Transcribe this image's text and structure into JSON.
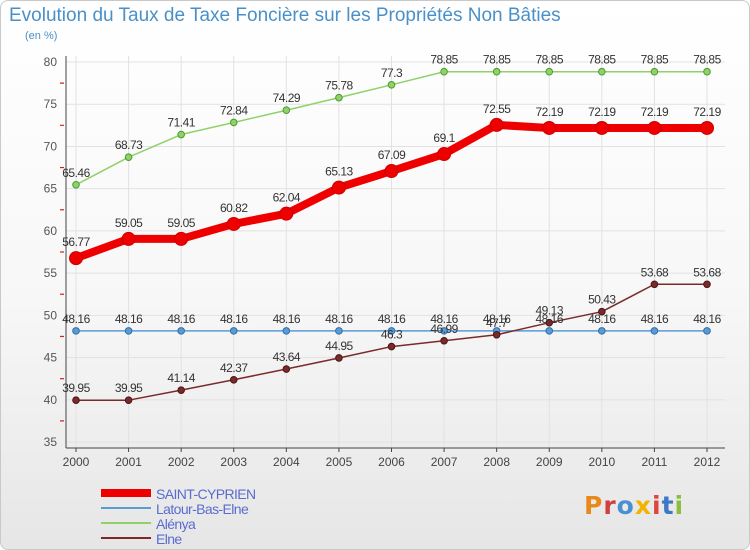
{
  "title": "Evolution du Taux de Taxe Foncière sur les Propriétés Non Bâties",
  "subtitle": "(en %)",
  "logo_text": "Proxiti",
  "chart_data": {
    "type": "line",
    "title": "Evolution du Taux de Taxe Foncière sur les Propriétés Non Bâties",
    "ylabel": "(en %)",
    "xlabel": "",
    "ylim": [
      35,
      80
    ],
    "yticks": [
      35,
      40,
      45,
      50,
      55,
      60,
      65,
      70,
      75,
      80
    ],
    "grid": true,
    "legend": "bottom-left",
    "x": [
      "2000",
      "2001",
      "2002",
      "2003",
      "2004",
      "2005",
      "2006",
      "2007",
      "2008",
      "2009",
      "2010",
      "2011",
      "2012"
    ],
    "series": [
      {
        "name": "SAINT-CYPRIEN",
        "color": "#ee0000",
        "values": [
          56.77,
          59.05,
          59.05,
          60.82,
          62.04,
          65.13,
          67.09,
          69.1,
          72.55,
          72.19,
          72.19,
          72.19,
          72.19
        ],
        "labels": [
          "56.77",
          "59.05",
          "59.05",
          "60.82",
          "62.04",
          "65.13",
          "67.09",
          "69.1",
          "72.55",
          "72.19",
          "72.19",
          "72.19",
          "72.19"
        ]
      },
      {
        "name": "Latour-Bas-Elne",
        "color": "#5b9bd5",
        "values": [
          48.16,
          48.16,
          48.16,
          48.16,
          48.16,
          48.16,
          48.16,
          48.16,
          48.16,
          48.16,
          48.16,
          48.16,
          48.16
        ],
        "labels": [
          "48.16",
          "48.16",
          "48.16",
          "48.16",
          "48.16",
          "48.16",
          "48.16",
          "48.16",
          "48.16",
          "48.16",
          "48.16",
          "48.16",
          "48.16"
        ]
      },
      {
        "name": "Alénya",
        "color": "#8fd16a",
        "values": [
          65.46,
          68.73,
          71.41,
          72.84,
          74.29,
          75.78,
          77.3,
          78.85,
          78.85,
          78.85,
          78.85,
          78.85,
          78.85
        ],
        "labels": [
          "65.46",
          "68.73",
          "71.41",
          "72.84",
          "74.29",
          "75.78",
          "77.3",
          "78.85",
          "78.85",
          "78.85",
          "78.85",
          "78.85",
          "78.85"
        ]
      },
      {
        "name": "Elne",
        "color": "#7a2a2a",
        "values": [
          39.95,
          39.95,
          41.14,
          42.37,
          43.64,
          44.95,
          46.3,
          46.99,
          47.7,
          49.13,
          50.43,
          53.68,
          53.68
        ],
        "labels": [
          "39.95",
          "39.95",
          "41.14",
          "42.37",
          "43.64",
          "44.95",
          "46.3",
          "46.99",
          "47.7",
          "49.13",
          "50.43",
          "53.68",
          "53.68"
        ]
      }
    ]
  }
}
